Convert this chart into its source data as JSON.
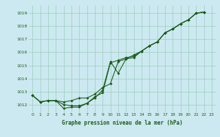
{
  "title": "Graphe pression niveau de la mer (hPa)",
  "background_color": "#cce8f0",
  "grid_color": "#99ccbb",
  "line_color": "#1a5c1a",
  "marker_color": "#1a5c1a",
  "xlim": [
    -0.5,
    23.5
  ],
  "ylim": [
    1011.4,
    1019.6
  ],
  "yticks": [
    1012,
    1013,
    1014,
    1015,
    1016,
    1017,
    1018,
    1019
  ],
  "xticks": [
    0,
    1,
    2,
    3,
    4,
    5,
    6,
    7,
    8,
    9,
    10,
    11,
    12,
    13,
    14,
    15,
    16,
    17,
    18,
    19,
    20,
    21,
    22,
    23
  ],
  "series1": [
    1012.7,
    1012.2,
    1012.3,
    1012.3,
    1011.7,
    1011.8,
    1011.8,
    1012.1,
    1012.5,
    1013.1,
    1015.3,
    1014.4,
    1015.5,
    1015.8,
    1016.1,
    1016.5,
    1016.8,
    1017.5,
    1017.8,
    1018.2,
    1018.5,
    1019.0,
    1019.1
  ],
  "series2": [
    1012.7,
    1012.2,
    1012.3,
    1012.3,
    1012.0,
    1011.9,
    1011.9,
    1012.1,
    1012.6,
    1012.9,
    1015.2,
    1015.4,
    1015.6,
    1015.7,
    1016.1,
    1016.5,
    1016.8,
    1017.5,
    1017.8,
    1018.2,
    1018.5,
    1019.0,
    1019.1
  ],
  "series3": [
    1012.7,
    1012.2,
    1012.3,
    1012.3,
    1012.2,
    1012.3,
    1012.5,
    1012.5,
    1012.8,
    1013.3,
    1013.6,
    1015.3,
    1015.5,
    1015.6,
    1016.1,
    1016.5,
    1016.8,
    1017.5,
    1017.8,
    1018.2,
    1018.5,
    1019.0,
    1019.1
  ]
}
